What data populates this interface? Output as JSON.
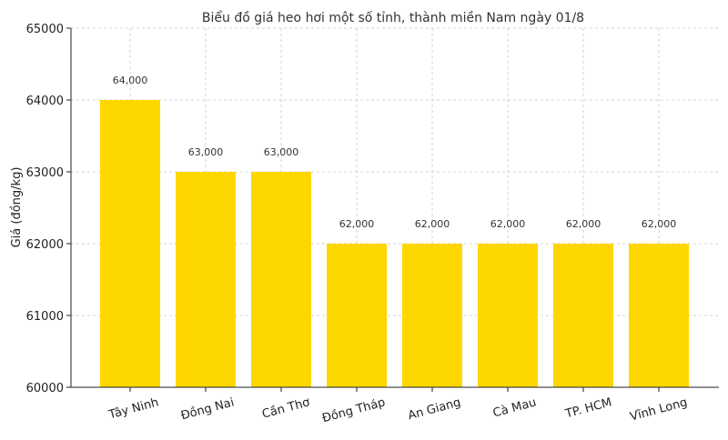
{
  "chart_data": {
    "type": "bar",
    "title": "Biểu đồ giá heo hơi một số tỉnh, thành miền Nam ngày 01/8",
    "xlabel": "",
    "ylabel": "Giá (đồng/kg)",
    "categories": [
      "Tây Ninh",
      "Đồng Nai",
      "Cần Thơ",
      "Đồng Tháp",
      "An Giang",
      "Cà Mau",
      "TP. HCM",
      "Vĩnh Long"
    ],
    "values": [
      64000,
      63000,
      63000,
      62000,
      62000,
      62000,
      62000,
      62000
    ],
    "data_labels": [
      "64,000",
      "63,000",
      "63,000",
      "62,000",
      "62,000",
      "62,000",
      "62,000",
      "62,000"
    ],
    "ylim": [
      60000,
      65000
    ],
    "yticks": [
      60000,
      61000,
      62000,
      63000,
      64000,
      65000
    ],
    "ytick_labels": [
      "60000",
      "61000",
      "62000",
      "63000",
      "64000",
      "65000"
    ],
    "grid": true,
    "bar_color": "#FFD700"
  }
}
